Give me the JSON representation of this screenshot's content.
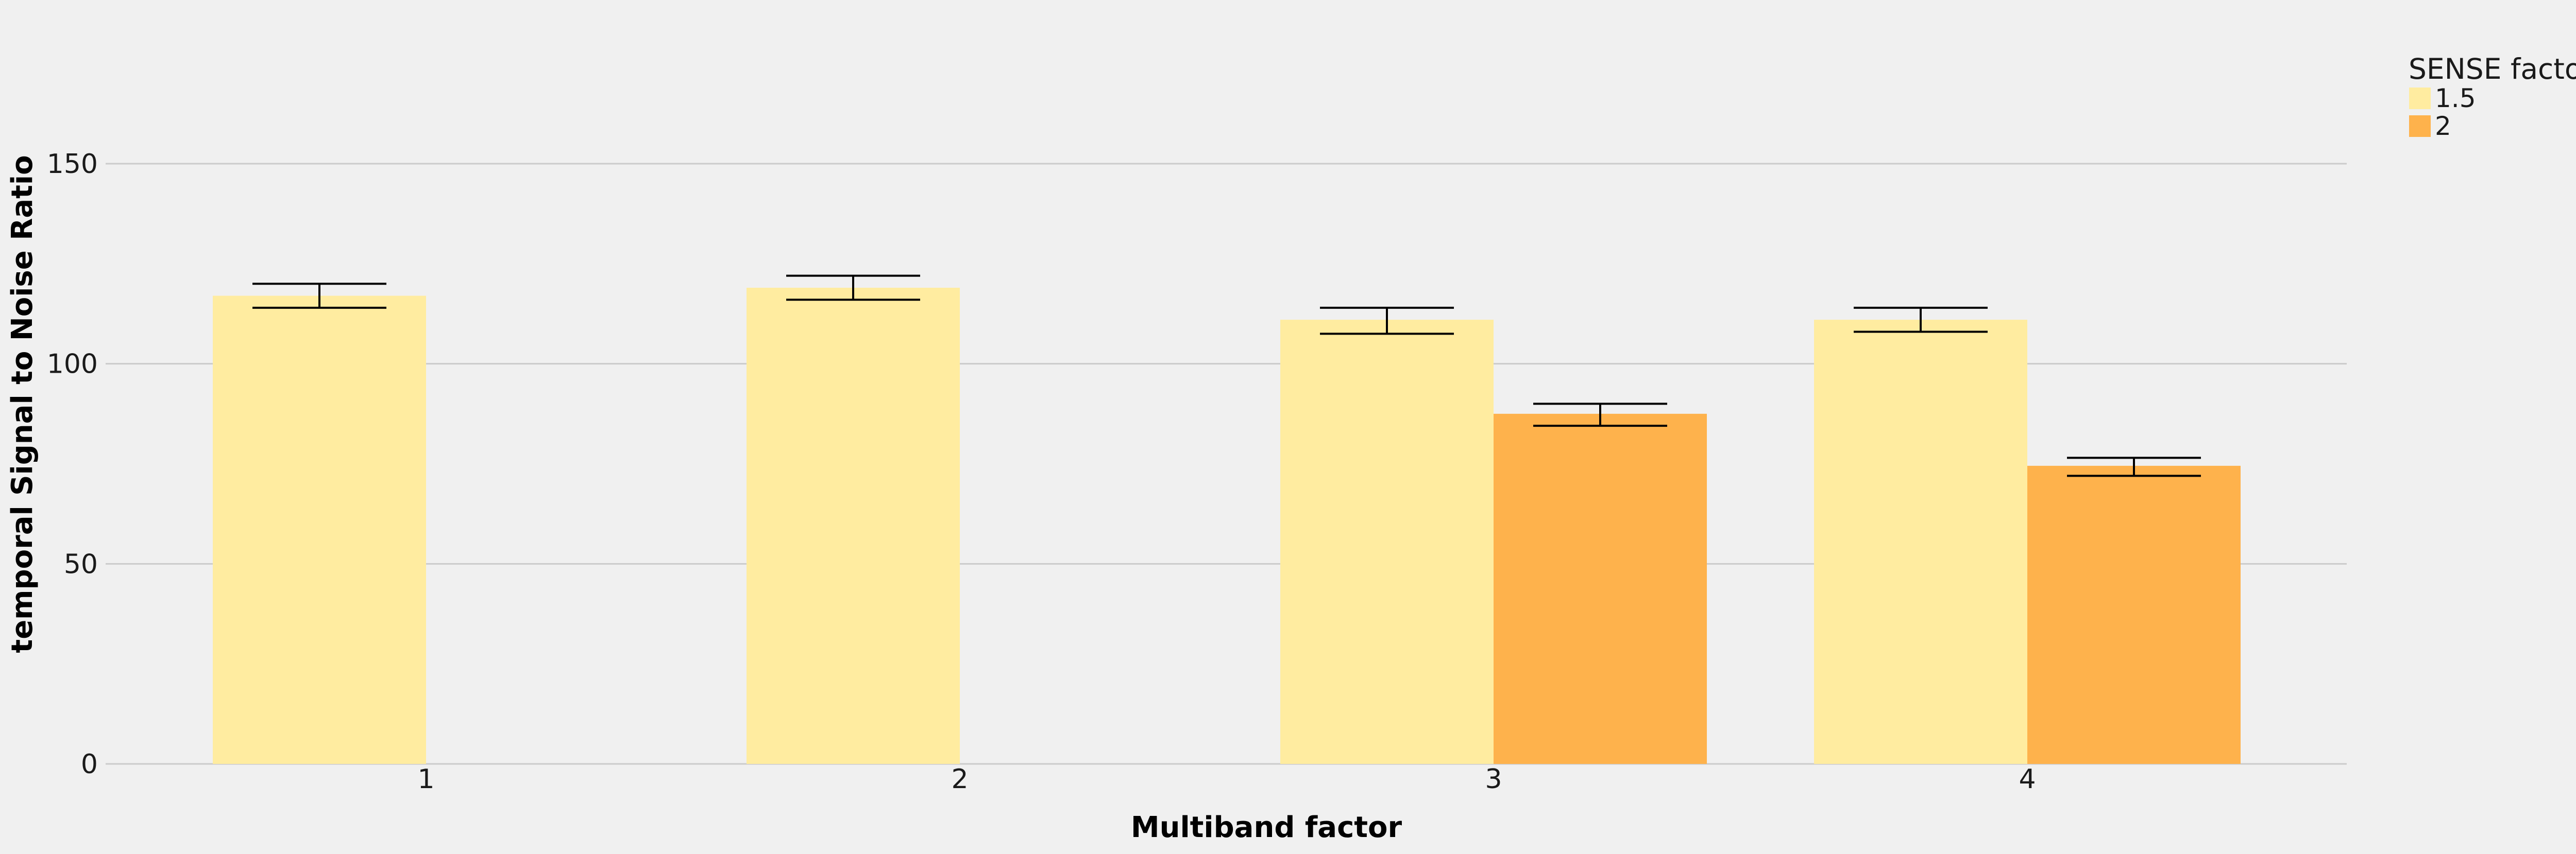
{
  "chart_data": {
    "type": "bar",
    "xlabel": "Multiband factor",
    "ylabel": "temporal Signal to Noise Ratio",
    "categories": [
      "1",
      "2",
      "3",
      "4"
    ],
    "yticks": [
      "0",
      "50",
      "100",
      "150"
    ],
    "ylim": [
      0,
      180
    ],
    "grid": true,
    "legend": {
      "title": "SENSE factor",
      "placement": "top-right, outside plot"
    },
    "series": [
      {
        "name": "1.5",
        "color": "#ffeca0",
        "values": [
          117,
          119,
          111,
          111
        ],
        "err_low": [
          114,
          116,
          107.5,
          108
        ],
        "err_high": [
          120,
          122,
          114,
          114
        ]
      },
      {
        "name": "2",
        "color": "#feb24c",
        "values": [
          null,
          null,
          87.5,
          74.5
        ],
        "err_low": [
          null,
          null,
          84.5,
          72
        ],
        "err_high": [
          null,
          null,
          90,
          76.5
        ]
      }
    ]
  }
}
